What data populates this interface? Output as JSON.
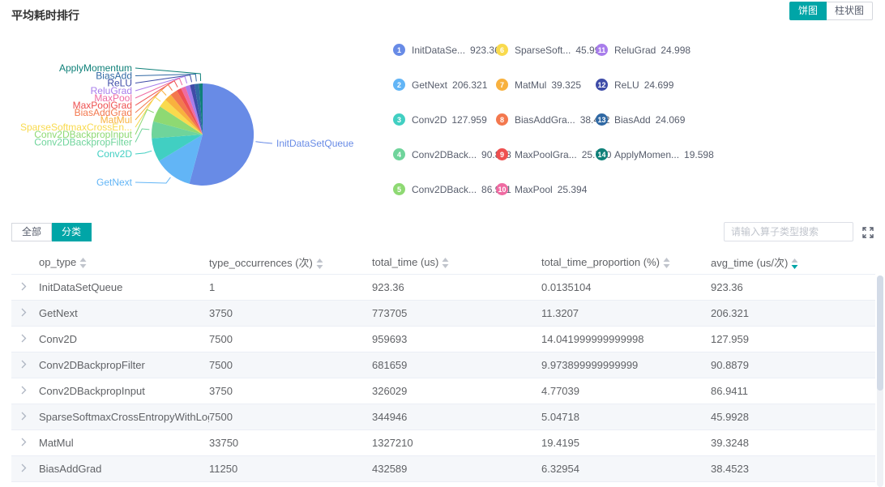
{
  "page": {
    "title": "平均耗时排行"
  },
  "view_toggle": {
    "pie_label": "饼图",
    "bar_label": "柱状图",
    "active": "饼图",
    "accent_color": "#00a5a7"
  },
  "chart_data": {
    "type": "pie",
    "title": "平均耗时排行",
    "series_name": "avg_time (us/次)",
    "legend_position": "right",
    "items": [
      {
        "rank": 1,
        "name": "InitDataSetQueue",
        "pie_label": "InitDataSetQueue",
        "legend_name": "InitDataSe...",
        "value": 923.36,
        "display_value": "923.360",
        "color": "#688be6"
      },
      {
        "rank": 2,
        "name": "GetNext",
        "pie_label": "GetNext",
        "legend_name": "GetNext",
        "value": 206.321,
        "display_value": "206.321",
        "color": "#62b5f6"
      },
      {
        "rank": 3,
        "name": "Conv2D",
        "pie_label": "Conv2D",
        "legend_name": "Conv2D",
        "value": 127.959,
        "display_value": "127.959",
        "color": "#41cfc2"
      },
      {
        "rank": 4,
        "name": "Conv2DBackpropFilter",
        "pie_label": "Conv2DBackpropFilter",
        "legend_name": "Conv2DBack...",
        "value": 90.888,
        "display_value": "90.888",
        "color": "#6fd49b"
      },
      {
        "rank": 5,
        "name": "Conv2DBackpropInput",
        "pie_label": "Conv2DBackpropInput",
        "legend_name": "Conv2DBack...",
        "value": 86.941,
        "display_value": "86.941",
        "color": "#8ed973"
      },
      {
        "rank": 6,
        "name": "SparseSoftmaxCrossEntropyWithLogits",
        "pie_label": "SparseSoftmaxCrossEn...",
        "legend_name": "SparseSoft...",
        "value": 45.993,
        "display_value": "45.993",
        "color": "#f9da4d"
      },
      {
        "rank": 7,
        "name": "MatMul",
        "pie_label": "MatMul",
        "legend_name": "MatMul",
        "value": 39.325,
        "display_value": "39.325",
        "color": "#f8b13e"
      },
      {
        "rank": 8,
        "name": "BiasAddGrad",
        "pie_label": "BiasAddGrad",
        "legend_name": "BiasAddGra...",
        "value": 38.452,
        "display_value": "38.452",
        "color": "#f3784e"
      },
      {
        "rank": 9,
        "name": "MaxPoolGrad",
        "pie_label": "MaxPoolGrad",
        "legend_name": "MaxPoolGra...",
        "value": 25.74,
        "display_value": "25.740",
        "color": "#ee5050"
      },
      {
        "rank": 10,
        "name": "MaxPool",
        "pie_label": "MaxPool",
        "legend_name": "MaxPool",
        "value": 25.394,
        "display_value": "25.394",
        "color": "#ef6ba2"
      },
      {
        "rank": 11,
        "name": "ReluGrad",
        "pie_label": "ReluGrad",
        "legend_name": "ReluGrad",
        "value": 24.998,
        "display_value": "24.998",
        "color": "#a87deb"
      },
      {
        "rank": 12,
        "name": "ReLU",
        "pie_label": "ReLU",
        "legend_name": "ReLU",
        "value": 24.699,
        "display_value": "24.699",
        "color": "#3e4ca8"
      },
      {
        "rank": 13,
        "name": "BiasAdd",
        "pie_label": "BiasAdd",
        "legend_name": "BiasAdd",
        "value": 24.069,
        "display_value": "24.069",
        "color": "#3069a4"
      },
      {
        "rank": 14,
        "name": "ApplyMomentum",
        "pie_label": "ApplyMomentum",
        "legend_name": "ApplyMomen...",
        "value": 19.598,
        "display_value": "19.598",
        "color": "#0f8079"
      }
    ]
  },
  "tabs": [
    {
      "label": "全部",
      "active": false
    },
    {
      "label": "分类",
      "active": true
    }
  ],
  "search": {
    "placeholder": "请输入算子类型搜索"
  },
  "table": {
    "columns": [
      {
        "key": "op_type",
        "label": "op_type",
        "sort": "none"
      },
      {
        "key": "type_occurrences",
        "label": "type_occurrences (次)",
        "sort": "none"
      },
      {
        "key": "total_time",
        "label": "total_time (us)",
        "sort": "none"
      },
      {
        "key": "total_time_proportion",
        "label": "total_time_proportion (%)",
        "sort": "none"
      },
      {
        "key": "avg_time",
        "label": "avg_time (us/次)",
        "sort": "desc"
      }
    ],
    "rows": [
      [
        "InitDataSetQueue",
        "1",
        "923.36",
        "0.0135104",
        "923.36"
      ],
      [
        "GetNext",
        "3750",
        "773705",
        "11.3207",
        "206.321"
      ],
      [
        "Conv2D",
        "7500",
        "959693",
        "14.041999999999998",
        "127.959"
      ],
      [
        "Conv2DBackpropFilter",
        "7500",
        "681659",
        "9.973899999999999",
        "90.8879"
      ],
      [
        "Conv2DBackpropInput",
        "3750",
        "326029",
        "4.77039",
        "86.9411"
      ],
      [
        "SparseSoftmaxCrossEntropyWithLogits",
        "7500",
        "344946",
        "5.04718",
        "45.9928"
      ],
      [
        "MatMul",
        "33750",
        "1327210",
        "19.4195",
        "39.3248"
      ],
      [
        "BiasAddGrad",
        "11250",
        "432589",
        "6.32954",
        "38.4523"
      ]
    ]
  }
}
